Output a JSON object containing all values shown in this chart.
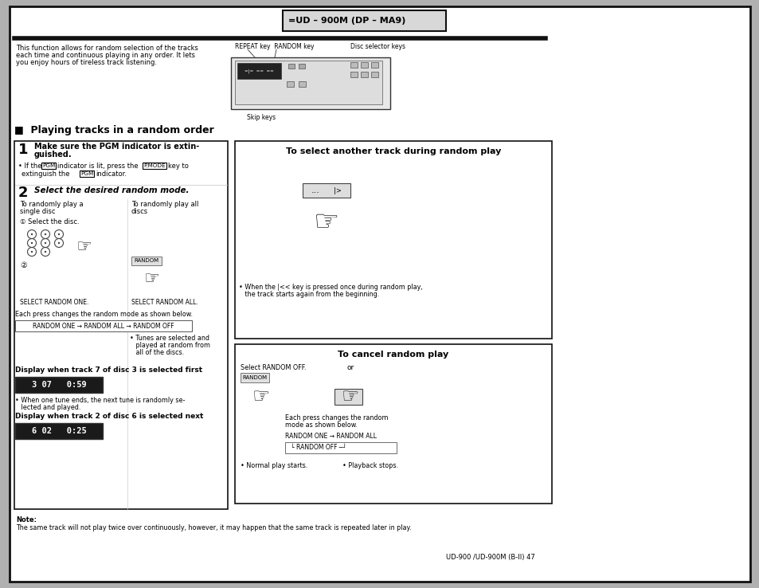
{
  "page_bg": "#ffffff",
  "outer_bg": "#b0b0b0",
  "title_box_text": "=UD - 900M (DP - MA9)",
  "title_box_bg": "#d0d0d0",
  "section_title": "■  Playing tracks in a random order",
  "intro_text": "This function allows for random selection of the tracks\neach time and continuous playing in any order. It lets\nyou enjoy hours of tireless track listening.",
  "note_label": "Note:",
  "note_text": "The same track will not play twice over continuously, however, it may happen that the same track is repeated later in play.",
  "page_footer": "UD-900 /UD-900M (B-II) 47"
}
